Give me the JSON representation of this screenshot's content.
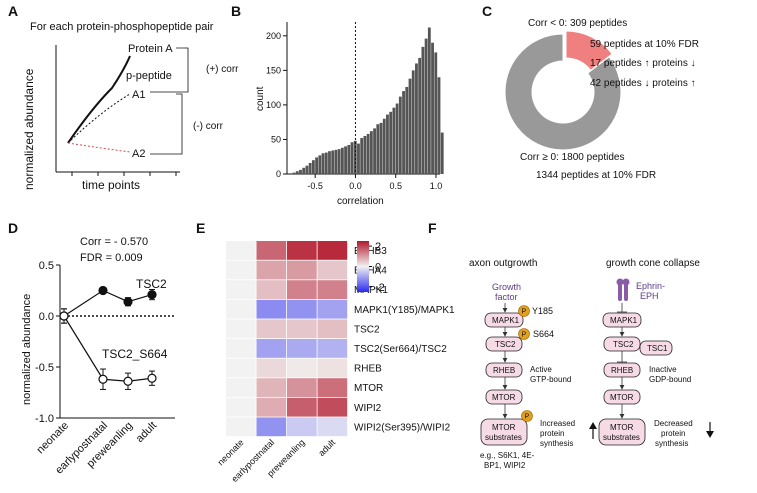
{
  "panels": {
    "A": {
      "letter": "A",
      "title": "For each protein-phosphopeptide pair",
      "ylabel": "normalized abundance",
      "xlabel": "time points",
      "labels": {
        "protein_a": "Protein A",
        "p_peptide": "p-peptide",
        "a1": "A1",
        "a2": "A2",
        "pos_corr": "(+) corr",
        "neg_corr": "(-) corr"
      }
    },
    "B": {
      "letter": "B"
    },
    "C": {
      "letter": "C",
      "neg_label": "Corr < 0: 309 peptides",
      "neg_lines": [
        "59 peptides at 10% FDR",
        "17 peptides ↑ proteins ↓",
        "42 peptides ↓ proteins ↑"
      ],
      "pos_label": "Corr ≥ 0: 1800 peptides",
      "pos_line": "1344 peptides at 10% FDR",
      "colors": {
        "neg": "#f08080",
        "pos": "#999999"
      }
    },
    "D": {
      "letter": "D",
      "corr": "Corr = - 0.570",
      "fdr": "FDR = 0.009",
      "series_labels": [
        "TSC2",
        "TSC2_S664"
      ]
    },
    "E": {
      "letter": "E"
    },
    "F": {
      "letter": "F",
      "left_title": "axon outgrowth",
      "right_title": "growth cone collapse",
      "left": {
        "growth_factor": [
          "Growth",
          "factor"
        ],
        "mapk1": "MAPK1",
        "y185": "Y185",
        "tsc2": "TSC2",
        "s664": "S664",
        "rheb": "RHEB",
        "active": [
          "Active",
          "GTP-bound"
        ],
        "mtor": "MTOR",
        "substrates": [
          "MTOR",
          "substrates"
        ],
        "increased": [
          "Increased",
          "protein",
          "synthesis"
        ],
        "eg": [
          "e.g., S6K1, 4E-",
          "BP1, WIPI2"
        ],
        "p": "P"
      },
      "right": {
        "ephrin": [
          "Ephrin-",
          "EPH"
        ],
        "mapk1": "MAPK1",
        "tsc2": "TSC2",
        "tsc1": "TSC1",
        "rheb": "RHEB",
        "inactive": [
          "Inactive",
          "GDP-bound"
        ],
        "mtor": "MTOR",
        "substrates": [
          "MTOR",
          "substrates"
        ],
        "decreased": [
          "Decreased",
          "protein",
          "synthesis"
        ]
      },
      "colors": {
        "node": "#f6dbe6",
        "phospho": "#e0a020",
        "receptor": "#8a5ca8"
      }
    }
  },
  "chart_data": [
    {
      "type": "bar",
      "panel": "B",
      "xlabel": "correlation",
      "ylabel": "count",
      "xlim": [
        -0.85,
        1.05
      ],
      "ylim": [
        0,
        220
      ],
      "xticks": [
        "-0.5",
        "0.0",
        "0.5",
        "1.0"
      ],
      "yticks": [
        "0",
        "50",
        "100",
        "150",
        "200"
      ],
      "bin_width": 0.04,
      "bin_start": -0.78,
      "values": [
        2,
        4,
        6,
        9,
        12,
        16,
        20,
        24,
        27,
        30,
        31,
        33,
        34,
        35,
        36,
        38,
        40,
        42,
        46,
        48,
        44,
        52,
        55,
        58,
        62,
        66,
        72,
        74,
        80,
        86,
        90,
        96,
        102,
        112,
        120,
        126,
        138,
        150,
        160,
        168,
        184,
        196,
        212,
        190,
        176,
        140,
        60
      ],
      "reference_line_x": 0,
      "color": "#555555"
    },
    {
      "type": "pie",
      "panel": "C",
      "donut": true,
      "slices": [
        {
          "label": "Corr < 0",
          "value": 309
        },
        {
          "label": "Corr ≥ 0",
          "value": 1800
        }
      ]
    },
    {
      "type": "line",
      "panel": "D",
      "ylabel": "normalized abundance",
      "categories": [
        "neonate",
        "earlypostnatal",
        "preweanling",
        "adult"
      ],
      "ylim": [
        -1.0,
        0.5
      ],
      "yticks": [
        "-1.0",
        "-0.5",
        "0.0",
        "0.5"
      ],
      "series": [
        {
          "name": "TSC2",
          "values": [
            0.0,
            0.25,
            0.14,
            0.21
          ],
          "errors": [
            0.07,
            0.03,
            0.04,
            0.05
          ],
          "filled": true
        },
        {
          "name": "TSC2_S664",
          "values": [
            0.0,
            -0.62,
            -0.64,
            -0.61
          ],
          "errors": [
            0.07,
            0.1,
            0.08,
            0.07
          ],
          "filled": false
        }
      ],
      "reference_line_y": 0
    },
    {
      "type": "heatmap",
      "panel": "E",
      "columns": [
        "neonate",
        "earlypostnatal",
        "preweanling",
        "adult"
      ],
      "rows": [
        "EPHB3",
        "EPHA4",
        "MAPK1",
        "MAPK1(Y185)/MAPK1",
        "TSC2",
        "TSC2(Ser664)/TSC2",
        "RHEB",
        "MTOR",
        "WIPI2",
        "WIPI2(Ser395)/WIPI2"
      ],
      "values": [
        [
          0.0,
          1.6,
          2.2,
          2.3
        ],
        [
          0.0,
          0.9,
          1.0,
          0.5
        ],
        [
          0.0,
          0.6,
          1.3,
          1.3
        ],
        [
          0.0,
          -1.3,
          -1.2,
          -1.0
        ],
        [
          0.0,
          0.5,
          0.5,
          0.6
        ],
        [
          0.0,
          -1.0,
          -0.9,
          -0.8
        ],
        [
          0.0,
          0.3,
          0.1,
          0.2
        ],
        [
          0.0,
          0.7,
          1.1,
          1.5
        ],
        [
          0.0,
          0.8,
          1.7,
          1.9
        ],
        [
          0.0,
          -1.2,
          -0.5,
          -0.3
        ]
      ],
      "colorbar": {
        "min": -2.5,
        "max": 2.5,
        "ticks": [
          "2",
          "0",
          "-2"
        ]
      }
    }
  ]
}
